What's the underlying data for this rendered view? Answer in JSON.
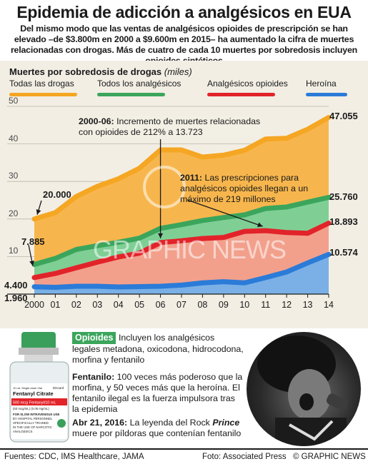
{
  "header": {
    "title": "Epidemia de adicción a analgésicos en EUA",
    "subtitle": "Del mismo modo que las ventas de analgésicos opioides de prescripción se han elevado –de $3.800m en 2000 a $9.600m en 2015– ha aumentado la cifra de muertes relacionadas con drogas. Más de cuatro de cada 10 muertes por sobredosis incluyen opioides sintéticos"
  },
  "chart_data": {
    "type": "area",
    "title": "Muertes por sobredosis de drogas",
    "unit": "(miles)",
    "x": [
      "2000",
      "01",
      "02",
      "03",
      "04",
      "05",
      "06",
      "07",
      "08",
      "09",
      "10",
      "11",
      "12",
      "13",
      "14"
    ],
    "ylim": [
      0,
      50
    ],
    "yticks": [
      "10",
      "20",
      "30",
      "40",
      "50"
    ],
    "grid": true,
    "legend_position": "top",
    "series": [
      {
        "name": "Todas las drogas",
        "color": "#f5a623",
        "fill": "#f7b64d",
        "values": [
          20.0,
          21.7,
          26.0,
          28.7,
          30.7,
          33.5,
          38.4,
          38.4,
          36.5,
          37.0,
          38.3,
          41.3,
          41.5,
          43.9,
          47.055
        ]
      },
      {
        "name": "Todos los analgésicos",
        "color": "#3ba55c",
        "fill": "#7fcf95",
        "values": [
          7.885,
          9.5,
          11.9,
          12.9,
          13.8,
          14.9,
          17.5,
          18.5,
          19.6,
          20.4,
          21.1,
          22.8,
          23.2,
          24.5,
          25.76
        ]
      },
      {
        "name": "Analgésicos opioides",
        "color": "#e2232a",
        "fill": "#f2a08c",
        "values": [
          4.4,
          5.5,
          7.0,
          8.5,
          9.9,
          10.9,
          13.723,
          14.2,
          14.8,
          15.1,
          16.7,
          16.9,
          16.4,
          16.2,
          18.893
        ]
      },
      {
        "name": "Heroína",
        "color": "#2b7bd8",
        "fill": "#7ab0e6",
        "values": [
          1.96,
          1.8,
          2.1,
          2.1,
          1.9,
          2.0,
          2.1,
          2.4,
          3.0,
          3.3,
          3.0,
          4.4,
          5.9,
          8.3,
          10.574
        ]
      }
    ],
    "value_labels": {
      "start_all": "20.000",
      "start_analg": "7.885",
      "start_opioid": "4.400",
      "start_heroin": "1.960",
      "end_all": "47.055",
      "end_analg": "25.760",
      "end_opioid": "18.893",
      "end_heroin": "10.574"
    },
    "annotations": [
      {
        "year_label": "2000-06:",
        "text": "Incremento de muertes relacionadas con opioides de 212% a 13.723"
      },
      {
        "year_label": "2011:",
        "text": "Las prescripciones para analgésicos opioides llegan a un máximo de 219 millones"
      }
    ]
  },
  "watermark": "GRAPHIC NEWS",
  "bottom": {
    "opioids_label": "Opioides",
    "opioids_text": "Incluyen los analgésicos legales metadona, oxicodona, hidrocodona, morfina y fentanilo",
    "fentanyl_label": "Fentanilo:",
    "fentanyl_text": "100 veces más poderoso que la morfina, y 50 veces más que la heroína. El fentanilo ilegal es la fuerza impulsora tras la epidemia",
    "prince_label": "Abr 21, 2016:",
    "prince_text_a": "La leyenda del Rock",
    "prince_name": "Prince",
    "prince_text_b": "muere por píldoras que contenían fentanilo",
    "vial": {
      "line1": "10 mL Single-dose Vial",
      "brand": "Fentanyl Citrate",
      "dose": "500 mcg Fentanyl/10 mL",
      "conc": "(50 mcg/mL) (0.05 mg/mL)",
      "warn1": "FOR SLOW INTRAVENOUS USE",
      "warn2": "BY HOSPITAL PERSONNEL",
      "warn3": "SPECIFICALLY TRAINED",
      "warn4": "IN THE USE OF NARCOTIC",
      "warn5": "ANALGESICS",
      "side": "Discard"
    }
  },
  "footer": {
    "sources": "Fuentes: CDC, IMS Healthcare, JAMA",
    "photo": "Foto: Associated Press",
    "credit": "© GRAPHIC NEWS"
  }
}
